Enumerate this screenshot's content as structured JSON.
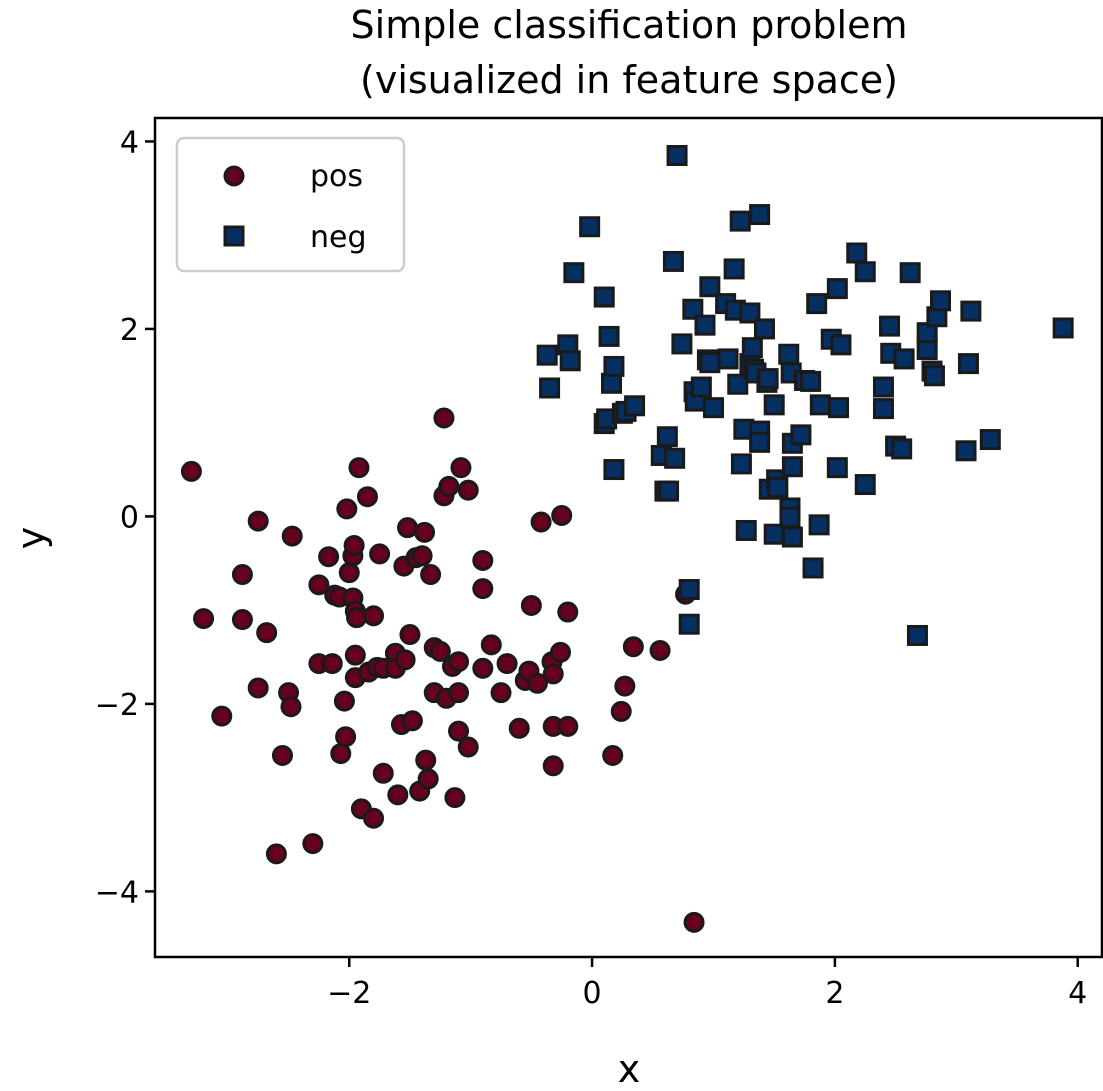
{
  "chart_data": {
    "type": "scatter",
    "title_line1": "Simple classification problem",
    "title_line2": "(visualized in feature space)",
    "xlabel": "x",
    "ylabel": "y",
    "xlim": [
      -3.6,
      4.2
    ],
    "ylim": [
      -4.7,
      4.25
    ],
    "x_ticks": [
      -2,
      0,
      2,
      4
    ],
    "y_ticks": [
      -4,
      -2,
      0,
      2,
      4
    ],
    "x_tick_labels": [
      "−2",
      "0",
      "2",
      "4"
    ],
    "y_tick_labels": [
      "−4",
      "−2",
      "0",
      "2",
      "4"
    ],
    "grid": false,
    "legend": {
      "position": "upper-left"
    },
    "series": [
      {
        "name": "pos",
        "marker": "circle",
        "color": "#67001f",
        "edge_color": "#1a1a1a",
        "points": [
          [
            -3.3,
            0.48
          ],
          [
            -3.2,
            -1.09
          ],
          [
            -3.05,
            -2.13
          ],
          [
            -2.88,
            -0.62
          ],
          [
            -2.88,
            -1.1
          ],
          [
            -2.75,
            -0.05
          ],
          [
            -2.75,
            -1.83
          ],
          [
            -2.68,
            -1.24
          ],
          [
            -2.6,
            -3.6
          ],
          [
            -2.55,
            -2.55
          ],
          [
            -2.5,
            -1.88
          ],
          [
            -2.48,
            -2.03
          ],
          [
            -2.47,
            -0.21
          ],
          [
            -2.3,
            -3.49
          ],
          [
            -2.25,
            -0.73
          ],
          [
            -2.25,
            -1.57
          ],
          [
            -2.17,
            -0.43
          ],
          [
            -2.14,
            -1.57
          ],
          [
            -2.12,
            -0.84
          ],
          [
            -2.08,
            -0.86
          ],
          [
            -2.07,
            -2.53
          ],
          [
            -2.03,
            -2.35
          ],
          [
            -2.04,
            -1.97
          ],
          [
            -2.02,
            0.08
          ],
          [
            -2.0,
            -0.6
          ],
          [
            -1.97,
            -0.87
          ],
          [
            -1.97,
            -0.42
          ],
          [
            -1.96,
            -0.31
          ],
          [
            -1.95,
            -1.01
          ],
          [
            -1.94,
            -1.08
          ],
          [
            -1.95,
            -1.48
          ],
          [
            -1.95,
            -1.72
          ],
          [
            -1.92,
            0.52
          ],
          [
            -1.9,
            -3.12
          ],
          [
            -1.85,
            0.21
          ],
          [
            -1.84,
            -1.66
          ],
          [
            -1.8,
            -3.22
          ],
          [
            -1.8,
            -1.06
          ],
          [
            -1.77,
            -1.61
          ],
          [
            -1.75,
            -0.4
          ],
          [
            -1.72,
            -1.62
          ],
          [
            -1.72,
            -2.74
          ],
          [
            -1.62,
            -1.46
          ],
          [
            -1.62,
            -1.62
          ],
          [
            -1.6,
            -2.97
          ],
          [
            -1.57,
            -2.22
          ],
          [
            -1.55,
            -0.53
          ],
          [
            -1.54,
            -1.53
          ],
          [
            -1.52,
            -0.12
          ],
          [
            -1.5,
            -1.26
          ],
          [
            -1.48,
            -2.18
          ],
          [
            -1.45,
            -0.44
          ],
          [
            -1.42,
            -2.93
          ],
          [
            -1.4,
            -0.42
          ],
          [
            -1.38,
            -0.17
          ],
          [
            -1.37,
            -2.6
          ],
          [
            -1.35,
            -2.8
          ],
          [
            -1.33,
            -0.62
          ],
          [
            -1.3,
            -1.88
          ],
          [
            -1.3,
            -1.4
          ],
          [
            -1.25,
            -1.44
          ],
          [
            -1.22,
            1.05
          ],
          [
            -1.22,
            0.22
          ],
          [
            -1.2,
            -1.94
          ],
          [
            -1.18,
            0.32
          ],
          [
            -1.15,
            -1.6
          ],
          [
            -1.13,
            -3.0
          ],
          [
            -1.1,
            -1.55
          ],
          [
            -1.1,
            -1.88
          ],
          [
            -1.1,
            -2.29
          ],
          [
            -1.08,
            0.52
          ],
          [
            -1.02,
            0.28
          ],
          [
            -1.02,
            -2.46
          ],
          [
            -0.9,
            -0.47
          ],
          [
            -0.9,
            -0.77
          ],
          [
            -0.9,
            -1.62
          ],
          [
            -0.83,
            -1.37
          ],
          [
            -0.75,
            -1.88
          ],
          [
            -0.7,
            -1.57
          ],
          [
            -0.6,
            -2.26
          ],
          [
            -0.55,
            -1.75
          ],
          [
            -0.52,
            -1.65
          ],
          [
            -0.5,
            -0.95
          ],
          [
            -0.45,
            -1.78
          ],
          [
            -0.42,
            -0.06
          ],
          [
            -0.33,
            -1.55
          ],
          [
            -0.32,
            -1.68
          ],
          [
            -0.32,
            -2.24
          ],
          [
            -0.32,
            -2.66
          ],
          [
            -0.26,
            -1.45
          ],
          [
            -0.25,
            0.01
          ],
          [
            -0.2,
            -2.24
          ],
          [
            -0.2,
            -1.02
          ],
          [
            0.17,
            -2.55
          ],
          [
            0.24,
            -2.08
          ],
          [
            0.27,
            -1.81
          ],
          [
            0.34,
            -1.39
          ],
          [
            0.56,
            -1.43
          ],
          [
            0.77,
            -0.83
          ],
          [
            0.84,
            -4.33
          ]
        ]
      },
      {
        "name": "neg",
        "marker": "square",
        "color": "#053061",
        "edge_color": "#1a1a1a",
        "points": [
          [
            -0.37,
            1.72
          ],
          [
            -0.35,
            1.37
          ],
          [
            -0.2,
            1.83
          ],
          [
            -0.18,
            1.66
          ],
          [
            -0.15,
            2.6
          ],
          [
            -0.02,
            3.09
          ],
          [
            0.1,
            0.99
          ],
          [
            0.1,
            2.34
          ],
          [
            0.12,
            1.04
          ],
          [
            0.14,
            1.92
          ],
          [
            0.16,
            1.42
          ],
          [
            0.18,
            1.6
          ],
          [
            0.18,
            0.5
          ],
          [
            0.25,
            1.1
          ],
          [
            0.28,
            1.12
          ],
          [
            0.35,
            1.18
          ],
          [
            0.57,
            0.65
          ],
          [
            0.6,
            0.27
          ],
          [
            0.62,
            0.85
          ],
          [
            0.63,
            0.27
          ],
          [
            0.67,
            2.72
          ],
          [
            0.68,
            0.62
          ],
          [
            0.7,
            3.85
          ],
          [
            0.74,
            1.84
          ],
          [
            0.8,
            -0.78
          ],
          [
            0.8,
            -1.15
          ],
          [
            0.83,
            2.21
          ],
          [
            0.84,
            1.33
          ],
          [
            0.85,
            1.23
          ],
          [
            0.9,
            1.38
          ],
          [
            0.93,
            2.04
          ],
          [
            0.95,
            1.67
          ],
          [
            0.97,
            2.45
          ],
          [
            0.97,
            1.64
          ],
          [
            1.0,
            1.16
          ],
          [
            1.1,
            2.27
          ],
          [
            1.12,
            1.68
          ],
          [
            1.17,
            2.64
          ],
          [
            1.18,
            2.2
          ],
          [
            1.2,
            1.41
          ],
          [
            1.22,
            3.15
          ],
          [
            1.23,
            0.56
          ],
          [
            1.25,
            0.93
          ],
          [
            1.27,
            -0.15
          ],
          [
            1.3,
            1.63
          ],
          [
            1.3,
            2.17
          ],
          [
            1.32,
            1.8
          ],
          [
            1.33,
            1.57
          ],
          [
            1.35,
            1.53
          ],
          [
            1.38,
            0.91
          ],
          [
            1.38,
            0.79
          ],
          [
            1.38,
            3.22
          ],
          [
            1.42,
            2.0
          ],
          [
            1.44,
            1.43
          ],
          [
            1.45,
            1.47
          ],
          [
            1.46,
            0.29
          ],
          [
            1.5,
            1.19
          ],
          [
            1.5,
            -0.19
          ],
          [
            1.52,
            0.39
          ],
          [
            1.53,
            0.31
          ],
          [
            1.62,
            1.73
          ],
          [
            1.63,
            0.09
          ],
          [
            1.63,
            -0.01
          ],
          [
            1.64,
            1.53
          ],
          [
            1.65,
            -0.22
          ],
          [
            1.65,
            0.78
          ],
          [
            1.65,
            0.53
          ],
          [
            1.72,
            0.87
          ],
          [
            1.75,
            1.45
          ],
          [
            1.8,
            1.44
          ],
          [
            1.82,
            -0.55
          ],
          [
            1.85,
            2.27
          ],
          [
            1.88,
            1.19
          ],
          [
            1.87,
            -0.09
          ],
          [
            1.97,
            1.89
          ],
          [
            2.02,
            2.43
          ],
          [
            2.02,
            0.52
          ],
          [
            2.03,
            1.16
          ],
          [
            2.05,
            1.83
          ],
          [
            2.18,
            2.81
          ],
          [
            2.25,
            2.61
          ],
          [
            2.25,
            0.34
          ],
          [
            2.4,
            1.38
          ],
          [
            2.4,
            1.15
          ],
          [
            2.45,
            2.03
          ],
          [
            2.46,
            1.74
          ],
          [
            2.5,
            0.75
          ],
          [
            2.55,
            0.72
          ],
          [
            2.57,
            1.68
          ],
          [
            2.62,
            2.6
          ],
          [
            2.68,
            -1.27
          ],
          [
            2.76,
            1.78
          ],
          [
            2.76,
            1.96
          ],
          [
            2.8,
            1.55
          ],
          [
            2.82,
            1.5
          ],
          [
            2.84,
            2.13
          ],
          [
            2.87,
            2.3
          ],
          [
            3.08,
            0.7
          ],
          [
            3.1,
            1.63
          ],
          [
            3.12,
            2.19
          ],
          [
            3.28,
            0.82
          ],
          [
            3.88,
            2.01
          ]
        ]
      }
    ]
  }
}
